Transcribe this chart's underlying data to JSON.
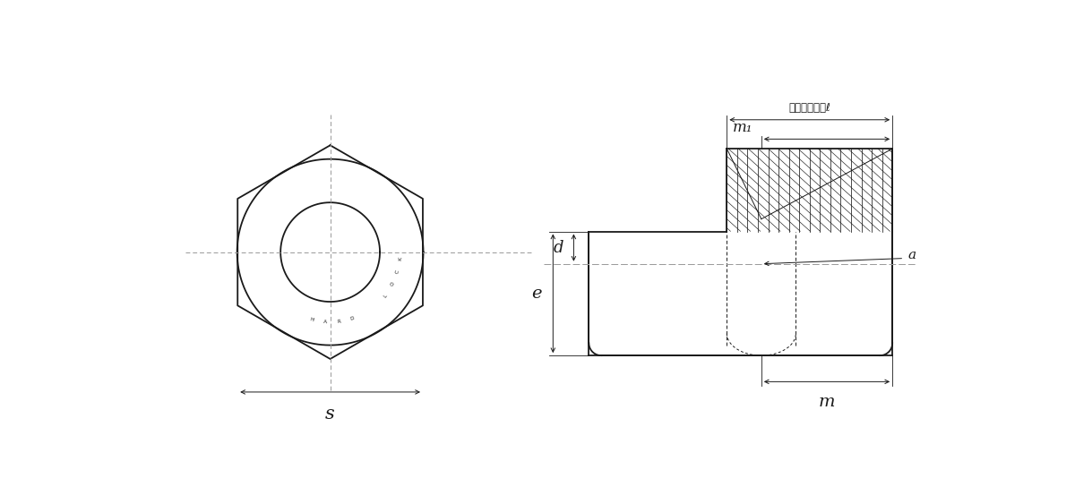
{
  "bg_color": "#ffffff",
  "line_color": "#1a1a1a",
  "center_line_color": "#999999",
  "fig_width": 12.0,
  "fig_height": 5.63,
  "dpi": 100,
  "label_s": "s",
  "label_m": "m",
  "label_m1": "m₁",
  "label_d": "d",
  "label_e": "e",
  "label_a": "a",
  "label_set": "セットの高さℓ",
  "label_hardlock": "HARD  LOCK"
}
